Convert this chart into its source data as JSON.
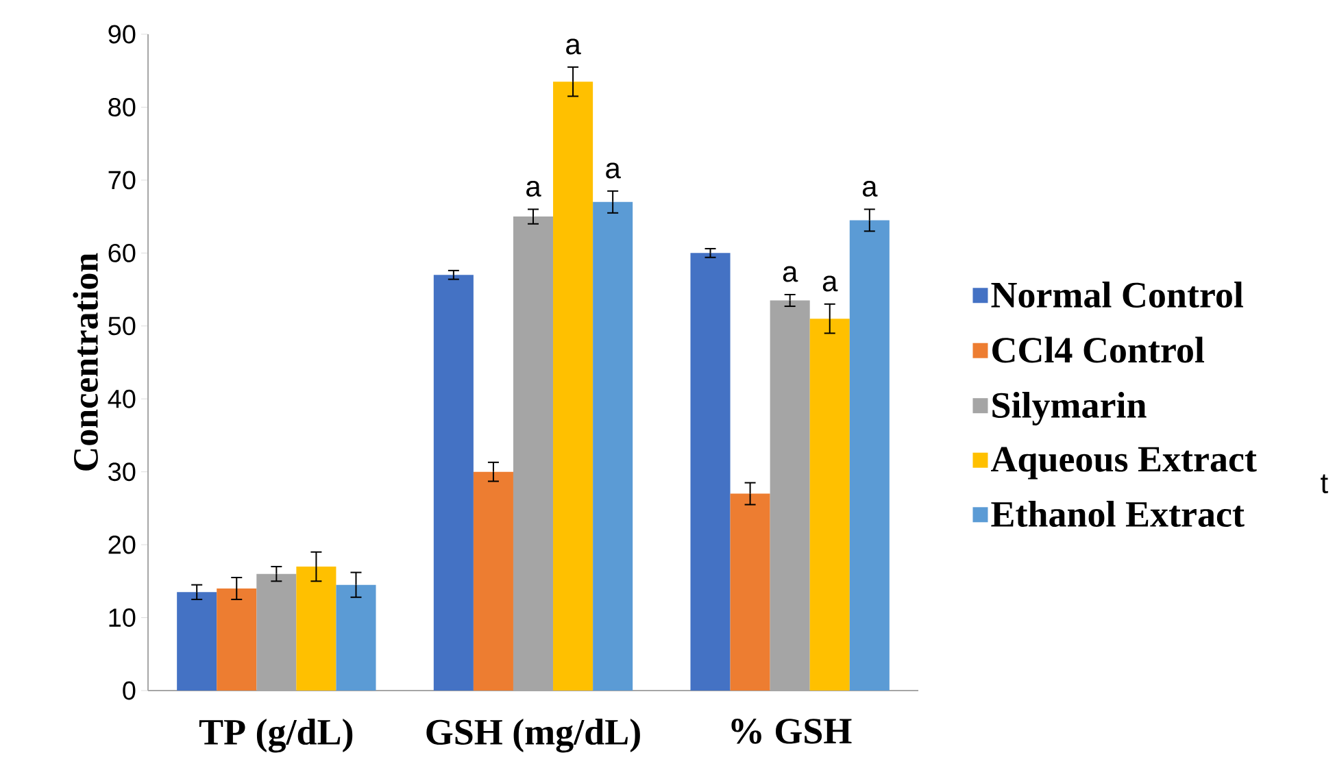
{
  "chart_data": {
    "type": "bar",
    "ylabel": "Concentration",
    "categories": [
      "TP (g/dL)",
      "GSH (mg/dL)",
      "% GSH"
    ],
    "series": [
      {
        "name": "Normal Control",
        "color": "#4472c4",
        "values": [
          13.5,
          57,
          60
        ],
        "errors": [
          1,
          0.6,
          0.6
        ]
      },
      {
        "name": "CCl4 Control",
        "color": "#ed7d31",
        "values": [
          14,
          30,
          27
        ],
        "errors": [
          1.5,
          1.3,
          1.5
        ]
      },
      {
        "name": "Silymarin",
        "color": "#a5a5a5",
        "values": [
          16,
          65,
          53.5
        ],
        "errors": [
          1,
          1,
          0.8
        ],
        "value_labels": [
          null,
          "a",
          "a"
        ]
      },
      {
        "name": "Aqueous Extract",
        "color": "#ffc000",
        "values": [
          17,
          83.5,
          51
        ],
        "errors": [
          2,
          2,
          2
        ],
        "value_labels": [
          null,
          "a",
          "a"
        ]
      },
      {
        "name": "Ethanol Extract",
        "color": "#5b9bd5",
        "values": [
          14.5,
          67,
          64.5
        ],
        "errors": [
          1.7,
          1.5,
          1.5
        ],
        "value_labels": [
          null,
          "a",
          "a"
        ]
      }
    ],
    "ylim": [
      0,
      90
    ],
    "yticks": [
      0,
      10,
      20,
      30,
      40,
      50,
      60,
      70,
      80,
      90
    ],
    "grid": false,
    "legend": "right",
    "annotations": [
      "t"
    ]
  }
}
